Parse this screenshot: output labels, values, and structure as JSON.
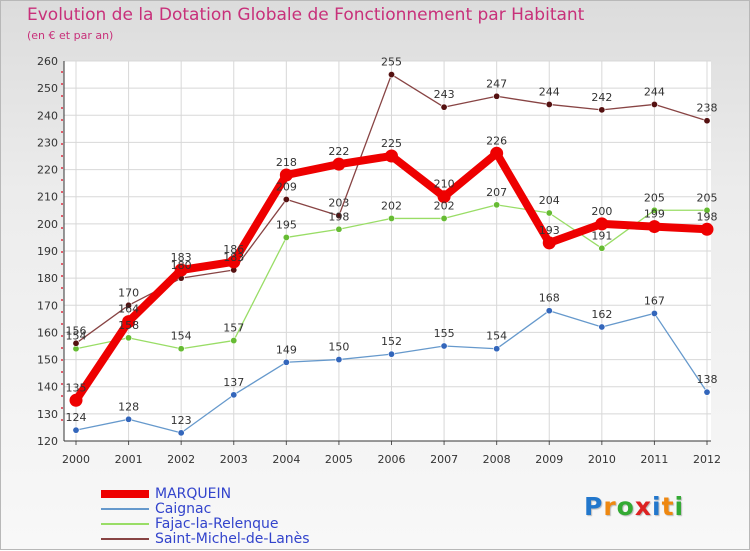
{
  "title": "Evolution de la Dotation Globale de Fonctionnement par Habitant",
  "subtitle": "(en € et par an)",
  "logo": {
    "text": "Proxiti",
    "letters": [
      "P",
      "r",
      "o",
      "x",
      "i",
      "t",
      "i"
    ],
    "colors": [
      "#2277cc",
      "#ee8811",
      "#33aa33",
      "#dd2222",
      "#2277cc",
      "#ee8811",
      "#33aa33"
    ]
  },
  "colors": {
    "title": "#c8307a",
    "legend_text": "#3344cc"
  },
  "chart_data": {
    "type": "line",
    "title": "Evolution de la Dotation Globale de Fonctionnement par Habitant",
    "subtitle": "(en € et par an)",
    "xlabel": "",
    "ylabel": "",
    "ylim": [
      120,
      260
    ],
    "ytick_step": 10,
    "categories": [
      "2000",
      "2001",
      "2002",
      "2003",
      "2004",
      "2005",
      "2006",
      "2007",
      "2008",
      "2009",
      "2010",
      "2011",
      "2012"
    ],
    "grid": true,
    "series": [
      {
        "name": "MARQUEIN",
        "color": "#ee0000",
        "marker": "#ee0000",
        "width": "thick",
        "values": [
          135,
          164,
          183,
          186,
          218,
          222,
          225,
          210,
          226,
          193,
          200,
          199,
          198
        ]
      },
      {
        "name": "Caignac",
        "color": "#6699cc",
        "marker": "#3366bb",
        "width": "thin",
        "values": [
          124,
          128,
          123,
          137,
          149,
          150,
          152,
          155,
          154,
          168,
          162,
          167,
          138
        ]
      },
      {
        "name": "Fajac-la-Relenque",
        "color": "#99dd66",
        "marker": "#66bb33",
        "width": "thin",
        "values": [
          154,
          158,
          154,
          157,
          195,
          198,
          202,
          202,
          207,
          204,
          191,
          205,
          205
        ]
      },
      {
        "name": "Saint-Michel-de-Lanès",
        "color": "#884444",
        "marker": "#551111",
        "width": "thin",
        "values": [
          156,
          170,
          180,
          183,
          209,
          203,
          255,
          243,
          247,
          244,
          242,
          244,
          238
        ]
      }
    ]
  }
}
